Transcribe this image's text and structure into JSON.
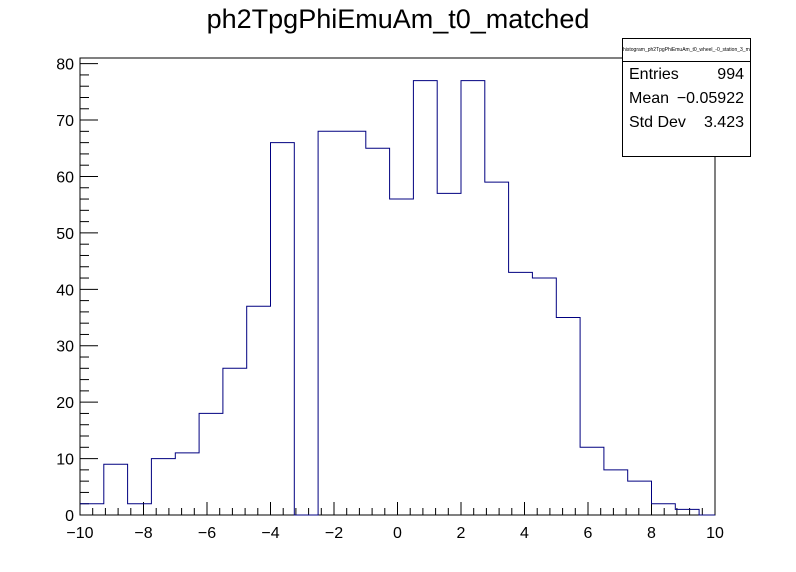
{
  "chart_data": {
    "type": "histogram",
    "title": "ph2TpgPhiEmuAm_t0_matched",
    "xlim": [
      -10,
      10
    ],
    "ylim": [
      0,
      81
    ],
    "x_ticks": [
      -10,
      -8,
      -6,
      -4,
      -2,
      0,
      2,
      4,
      6,
      8,
      10
    ],
    "x_tick_labels": [
      "−10",
      "−8",
      "−6",
      "−4",
      "−2",
      "0",
      "2",
      "4",
      "6",
      "8",
      "10"
    ],
    "y_ticks": [
      0,
      10,
      20,
      30,
      40,
      50,
      60,
      70,
      80
    ],
    "y_tick_labels": [
      "0",
      "10",
      "20",
      "30",
      "40",
      "50",
      "60",
      "70",
      "80"
    ],
    "bin_edges": [
      -10.0,
      -9.25,
      -8.5,
      -7.75,
      -7.0,
      -6.25,
      -5.5,
      -4.75,
      -4.0,
      -3.25,
      -2.5,
      -1.75,
      -1.0,
      -0.25,
      0.5,
      1.25,
      2.0,
      2.75,
      3.5,
      4.25,
      5.0,
      5.75,
      6.5,
      7.25,
      8.0,
      8.75,
      9.5,
      10.25
    ],
    "values": [
      2,
      9,
      2,
      10,
      11,
      18,
      26,
      37,
      66,
      0,
      68,
      68,
      65,
      56,
      77,
      57,
      77,
      59,
      43,
      42,
      35,
      12,
      8,
      6,
      2,
      1,
      0
    ],
    "line_color": "#000080",
    "grid": false,
    "stats": {
      "name": "histogram_ph2TpgPhiEmuAm_t0_wheel_-0_station_3_matched",
      "entries_label": "Entries",
      "entries": "994",
      "mean_label": "Mean",
      "mean": "−0.05922",
      "stddev_label": "Std Dev",
      "stddev": "3.423"
    }
  }
}
